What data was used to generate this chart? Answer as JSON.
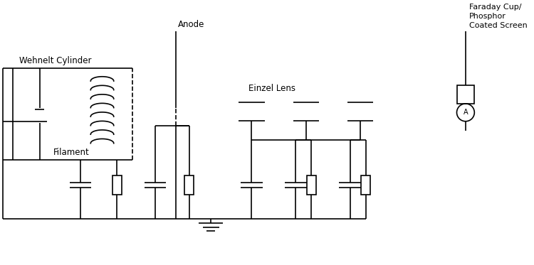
{
  "bg": "#ffffff",
  "lc": "#000000",
  "lw": 1.2,
  "labels": {
    "wehnelt": "Wehnelt Cylinder",
    "filament": "Filament",
    "anode": "Anode",
    "einzel": "Einzel Lens",
    "faraday": "Faraday Cup/\nPhosphor\nCoated Screen"
  },
  "fig_w": 7.5,
  "fig_h": 3.73,
  "dpi": 100
}
